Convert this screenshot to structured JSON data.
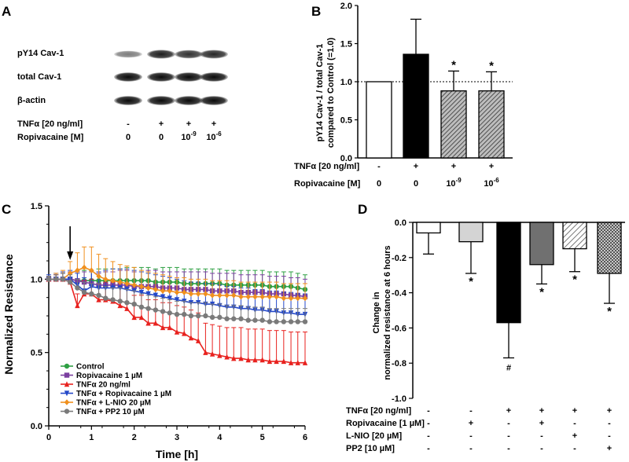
{
  "panels": {
    "A": {
      "letter": "A",
      "blot_rows": [
        {
          "label": "pY14 Cav-1",
          "intensity": [
            0.35,
            0.85,
            0.75,
            0.8
          ]
        },
        {
          "label": "total Cav-1",
          "intensity": [
            0.95,
            0.95,
            0.95,
            0.95
          ]
        },
        {
          "label": "β-actin",
          "intensity": [
            0.95,
            0.95,
            0.95,
            0.95
          ]
        }
      ],
      "conditions": [
        {
          "label": "TNFα [20 ng/ml]",
          "values": [
            "-",
            "+",
            "+",
            "+"
          ]
        },
        {
          "label": "Ropivacaine [M]",
          "values": [
            "0",
            "0",
            "10-9",
            "10-6"
          ]
        }
      ]
    },
    "B": {
      "letter": "B",
      "ylabel_line1": "pY14 Cav-1 / total Cav-1",
      "ylabel_line2": "compared to Control (=1.0)",
      "yticks": [
        "0.0",
        "0.5",
        "1.0",
        "1.5",
        "2.0"
      ],
      "star": "*",
      "conditions": [
        {
          "label": "TNFα [20 ng/ml]",
          "values": [
            "-",
            "+",
            "+",
            "+"
          ]
        },
        {
          "label": "Ropivacaine [M]",
          "values": [
            "0",
            "0",
            "10-9",
            "10-6"
          ]
        }
      ]
    },
    "C": {
      "letter": "C",
      "ylabel": "Normalized Resistance",
      "xlabel": "Time [h]",
      "xticks": [
        "0",
        "1",
        "2",
        "3",
        "4",
        "5",
        "6"
      ],
      "yticks": [
        "0.0",
        "0.5",
        "1.0",
        "1.5"
      ]
    },
    "D": {
      "letter": "D",
      "ylabel_line1": "Change in",
      "ylabel_line2": "normalized resistance at 6 hours",
      "yticks": [
        "0.0",
        "-0.2",
        "-0.4",
        "-0.6",
        "-0.8",
        "-1.0"
      ],
      "star": "*",
      "hash": "#",
      "conditions": [
        {
          "label": "TNFα [20 ng/ml]",
          "values": [
            "-",
            "-",
            "+",
            "+",
            "+",
            "+"
          ]
        },
        {
          "label": "Ropivacaine [1 µM]",
          "values": [
            "-",
            "+",
            "-",
            "+",
            "-",
            "-"
          ]
        },
        {
          "label": "L-NIO [20 µM]",
          "values": [
            "-",
            "-",
            "-",
            "-",
            "+",
            "-"
          ]
        },
        {
          "label": "PP2 [10 µM]",
          "values": [
            "-",
            "-",
            "-",
            "-",
            "-",
            "+"
          ]
        }
      ]
    }
  },
  "chart_data": [
    {
      "id": "B",
      "type": "bar",
      "title": "",
      "ylabel": "pY14 Cav-1 / total Cav-1 compared to Control (=1.0)",
      "ylim": [
        0,
        2.0
      ],
      "reference_line": 1.0,
      "categories": [
        "- / 0",
        "+ / 0",
        "+ / 10-9",
        "+ / 10-6"
      ],
      "values": [
        1.0,
        1.36,
        0.88,
        0.88
      ],
      "errors": [
        0,
        0.46,
        0.26,
        0.25
      ],
      "significant": [
        false,
        false,
        true,
        true
      ],
      "colors": [
        "#ffffff",
        "#000000",
        "hatch",
        "hatch"
      ]
    },
    {
      "id": "C",
      "type": "line",
      "title": "",
      "xlabel": "Time [h]",
      "ylabel": "Normalized Resistance",
      "xlim": [
        0,
        6
      ],
      "ylim": [
        0,
        1.5
      ],
      "arrow_x": 0.5,
      "legend_position": "bottom-left",
      "x": [
        0,
        0.17,
        0.33,
        0.5,
        0.67,
        0.83,
        1.0,
        1.17,
        1.33,
        1.5,
        1.67,
        1.83,
        2.0,
        2.17,
        2.33,
        2.5,
        2.67,
        2.83,
        3.0,
        3.17,
        3.33,
        3.5,
        3.67,
        3.83,
        4.0,
        4.17,
        4.33,
        4.5,
        4.67,
        4.83,
        5.0,
        5.17,
        5.33,
        5.5,
        5.67,
        5.83,
        6.0
      ],
      "series": [
        {
          "name": "Control",
          "color": "#2ea043",
          "marker": "circle",
          "values": [
            1.0,
            1.0,
            1.0,
            1.0,
            0.99,
            0.99,
            0.99,
            0.99,
            0.99,
            0.99,
            0.99,
            0.99,
            0.99,
            0.99,
            0.99,
            0.98,
            0.98,
            0.98,
            0.98,
            0.97,
            0.97,
            0.97,
            0.97,
            0.97,
            0.97,
            0.96,
            0.96,
            0.96,
            0.96,
            0.96,
            0.96,
            0.95,
            0.95,
            0.95,
            0.95,
            0.94,
            0.93
          ],
          "errors": [
            0.02,
            0.03,
            0.04,
            0.05,
            0.06,
            0.07,
            0.07,
            0.08,
            0.08,
            0.08,
            0.08,
            0.09,
            0.09,
            0.09,
            0.09,
            0.09,
            0.1,
            0.1,
            0.1,
            0.1,
            0.1,
            0.1,
            0.1,
            0.1,
            0.1,
            0.1,
            0.1,
            0.1,
            0.1,
            0.1,
            0.1,
            0.1,
            0.1,
            0.1,
            0.1,
            0.1,
            0.1
          ]
        },
        {
          "name": "Ropivacaine 1 µM",
          "color": "#7b3fa0",
          "marker": "square",
          "values": [
            1.0,
            1.0,
            1.0,
            1.0,
            0.99,
            0.98,
            0.97,
            0.96,
            0.96,
            0.96,
            0.96,
            0.96,
            0.95,
            0.95,
            0.95,
            0.95,
            0.94,
            0.94,
            0.94,
            0.93,
            0.93,
            0.93,
            0.93,
            0.92,
            0.92,
            0.92,
            0.92,
            0.91,
            0.91,
            0.91,
            0.91,
            0.9,
            0.9,
            0.9,
            0.89,
            0.89,
            0.88
          ],
          "errors": [
            0.02,
            0.03,
            0.04,
            0.05,
            0.06,
            0.07,
            0.08,
            0.08,
            0.09,
            0.09,
            0.1,
            0.1,
            0.1,
            0.1,
            0.11,
            0.11,
            0.11,
            0.11,
            0.11,
            0.12,
            0.12,
            0.12,
            0.12,
            0.12,
            0.12,
            0.12,
            0.12,
            0.12,
            0.12,
            0.12,
            0.12,
            0.12,
            0.12,
            0.12,
            0.12,
            0.12,
            0.12
          ]
        },
        {
          "name": "TNFα 20 ng/ml",
          "color": "#e8221f",
          "marker": "triangle-up",
          "values": [
            1.0,
            1.0,
            1.0,
            0.98,
            0.82,
            0.9,
            0.9,
            0.86,
            0.86,
            0.85,
            0.82,
            0.8,
            0.74,
            0.74,
            0.7,
            0.7,
            0.67,
            0.67,
            0.64,
            0.63,
            0.6,
            0.58,
            0.5,
            0.49,
            0.48,
            0.47,
            0.46,
            0.46,
            0.45,
            0.45,
            0.45,
            0.44,
            0.44,
            0.44,
            0.43,
            0.43,
            0.43
          ],
          "errors": [
            0.02,
            0.03,
            0.05,
            0.06,
            0.08,
            0.09,
            0.1,
            0.11,
            0.12,
            0.13,
            0.13,
            0.14,
            0.15,
            0.15,
            0.16,
            0.16,
            0.17,
            0.17,
            0.18,
            0.18,
            0.19,
            0.19,
            0.2,
            0.2,
            0.2,
            0.2,
            0.21,
            0.21,
            0.21,
            0.21,
            0.21,
            0.21,
            0.21,
            0.21,
            0.21,
            0.21,
            0.21
          ]
        },
        {
          "name": "TNFα + Ropivacaine 1 µM",
          "color": "#2448c8",
          "marker": "triangle-down",
          "values": [
            1.0,
            1.0,
            1.0,
            1.0,
            0.96,
            0.92,
            0.95,
            0.94,
            0.94,
            0.94,
            0.94,
            0.93,
            0.92,
            0.91,
            0.9,
            0.89,
            0.88,
            0.87,
            0.86,
            0.85,
            0.84,
            0.84,
            0.83,
            0.83,
            0.82,
            0.81,
            0.81,
            0.8,
            0.8,
            0.79,
            0.79,
            0.78,
            0.78,
            0.77,
            0.77,
            0.76,
            0.76
          ],
          "errors": [
            0.03,
            0.04,
            0.05,
            0.06,
            0.08,
            0.09,
            0.1,
            0.11,
            0.12,
            0.13,
            0.13,
            0.14,
            0.14,
            0.14,
            0.14,
            0.14,
            0.14,
            0.14,
            0.14,
            0.14,
            0.14,
            0.14,
            0.14,
            0.14,
            0.14,
            0.14,
            0.14,
            0.14,
            0.14,
            0.14,
            0.14,
            0.14,
            0.14,
            0.14,
            0.14,
            0.14,
            0.14
          ]
        },
        {
          "name": "TNFα + L-NIO 20 µM",
          "color": "#f0901e",
          "marker": "diamond",
          "values": [
            1.0,
            1.0,
            1.0,
            1.04,
            1.06,
            1.08,
            1.06,
            1.02,
            1.0,
            0.99,
            0.98,
            0.97,
            0.96,
            0.95,
            0.94,
            0.93,
            0.92,
            0.92,
            0.91,
            0.91,
            0.9,
            0.9,
            0.9,
            0.89,
            0.89,
            0.89,
            0.89,
            0.88,
            0.88,
            0.88,
            0.88,
            0.88,
            0.88,
            0.87,
            0.87,
            0.87,
            0.87
          ],
          "errors": [
            0.02,
            0.04,
            0.06,
            0.08,
            0.12,
            0.14,
            0.16,
            0.15,
            0.14,
            0.13,
            0.12,
            0.12,
            0.12,
            0.11,
            0.11,
            0.11,
            0.11,
            0.1,
            0.1,
            0.1,
            0.1,
            0.1,
            0.1,
            0.1,
            0.1,
            0.1,
            0.1,
            0.1,
            0.1,
            0.1,
            0.1,
            0.1,
            0.1,
            0.1,
            0.1,
            0.1,
            0.1
          ]
        },
        {
          "name": "TNFα + PP2 10 µM",
          "color": "#7a7a7a",
          "marker": "circle",
          "values": [
            1.0,
            1.0,
            1.0,
            0.98,
            0.94,
            0.91,
            0.9,
            0.89,
            0.87,
            0.86,
            0.85,
            0.84,
            0.83,
            0.81,
            0.8,
            0.79,
            0.78,
            0.77,
            0.76,
            0.76,
            0.75,
            0.75,
            0.75,
            0.74,
            0.74,
            0.73,
            0.73,
            0.73,
            0.72,
            0.72,
            0.72,
            0.71,
            0.71,
            0.71,
            0.71,
            0.71,
            0.71
          ],
          "errors": [
            0.02,
            0.03,
            0.04,
            0.05,
            0.06,
            0.07,
            0.07,
            0.08,
            0.08,
            0.08,
            0.09,
            0.09,
            0.09,
            0.09,
            0.09,
            0.09,
            0.09,
            0.09,
            0.09,
            0.09,
            0.09,
            0.09,
            0.09,
            0.09,
            0.09,
            0.09,
            0.09,
            0.09,
            0.09,
            0.09,
            0.09,
            0.09,
            0.09,
            0.09,
            0.09,
            0.09,
            0.09
          ]
        }
      ]
    },
    {
      "id": "D",
      "type": "bar",
      "title": "",
      "ylabel": "Change in normalized resistance at 6 hours",
      "ylim": [
        -1.0,
        0.0
      ],
      "categories": [
        "Control",
        "Ropivacaine",
        "TNFα",
        "TNFα + Ropivacaine",
        "TNFα + L-NIO",
        "TNFα + PP2"
      ],
      "values": [
        -0.06,
        -0.11,
        -0.57,
        -0.24,
        -0.15,
        -0.29
      ],
      "errors": [
        0.12,
        0.18,
        0.2,
        0.11,
        0.13,
        0.17
      ],
      "annotations": [
        "",
        "*",
        "#",
        "*",
        "*",
        "*"
      ],
      "fills": [
        "#ffffff",
        "#d4d4d4",
        "#000000",
        "#707070",
        "hatch",
        "dots"
      ]
    }
  ]
}
